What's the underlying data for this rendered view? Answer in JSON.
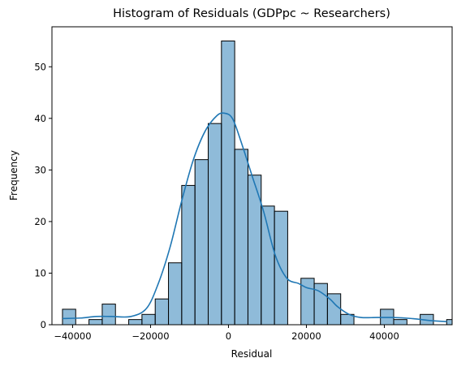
{
  "chart_data": {
    "type": "bar",
    "title": "Histogram of Residuals (GDPpc ~ Researchers)",
    "xlabel": "Residual",
    "ylabel": "Frequency",
    "xlim": [
      -45300,
      57400
    ],
    "ylim": [
      0,
      57.75
    ],
    "grid": false,
    "bar_color": "#1f77b4",
    "bar_opacity": 0.5,
    "edge_color": "#000000",
    "kde_color": "#1f77b4",
    "x_ticks": [
      -40000,
      -20000,
      0,
      20000,
      40000
    ],
    "x_tick_labels": [
      "−40000",
      "−20000",
      "0",
      "20000",
      "40000"
    ],
    "y_ticks": [
      0,
      10,
      20,
      30,
      40,
      50
    ],
    "y_tick_labels": [
      "0",
      "10",
      "20",
      "30",
      "40",
      "50"
    ],
    "bins": [
      {
        "x0": -42600,
        "x1": -39200,
        "count": 3
      },
      {
        "x0": -39200,
        "x1": -35800,
        "count": 0
      },
      {
        "x0": -35800,
        "x1": -32400,
        "count": 1
      },
      {
        "x0": -32400,
        "x1": -29000,
        "count": 4
      },
      {
        "x0": -29000,
        "x1": -25600,
        "count": 0
      },
      {
        "x0": -25600,
        "x1": -22200,
        "count": 1
      },
      {
        "x0": -22200,
        "x1": -18800,
        "count": 2
      },
      {
        "x0": -18800,
        "x1": -15400,
        "count": 5
      },
      {
        "x0": -15400,
        "x1": -12000,
        "count": 12
      },
      {
        "x0": -12000,
        "x1": -8600,
        "count": 27
      },
      {
        "x0": -8600,
        "x1": -5200,
        "count": 32
      },
      {
        "x0": -5200,
        "x1": -1800,
        "count": 39
      },
      {
        "x0": -1800,
        "x1": 1600,
        "count": 55
      },
      {
        "x0": 1600,
        "x1": 5000,
        "count": 34
      },
      {
        "x0": 5000,
        "x1": 8400,
        "count": 29
      },
      {
        "x0": 8400,
        "x1": 11800,
        "count": 23
      },
      {
        "x0": 11800,
        "x1": 15200,
        "count": 22
      },
      {
        "x0": 15200,
        "x1": 18600,
        "count": 0
      },
      {
        "x0": 18600,
        "x1": 22000,
        "count": 9
      },
      {
        "x0": 22000,
        "x1": 25400,
        "count": 8
      },
      {
        "x0": 25400,
        "x1": 28800,
        "count": 6
      },
      {
        "x0": 28800,
        "x1": 32200,
        "count": 2
      },
      {
        "x0": 32200,
        "x1": 35600,
        "count": 0
      },
      {
        "x0": 35600,
        "x1": 39000,
        "count": 0
      },
      {
        "x0": 39000,
        "x1": 42400,
        "count": 3
      },
      {
        "x0": 42400,
        "x1": 45800,
        "count": 1
      },
      {
        "x0": 45800,
        "x1": 49200,
        "count": 0
      },
      {
        "x0": 49200,
        "x1": 52600,
        "count": 2
      },
      {
        "x0": 52600,
        "x1": 56000,
        "count": 0
      },
      {
        "x0": 56000,
        "x1": 57400,
        "count": 1
      }
    ],
    "kde": [
      [
        -42600,
        1.2
      ],
      [
        -38000,
        1.3
      ],
      [
        -34000,
        1.6
      ],
      [
        -30000,
        1.6
      ],
      [
        -25000,
        1.6
      ],
      [
        -21000,
        3.2
      ],
      [
        -18000,
        8.0
      ],
      [
        -15000,
        15.0
      ],
      [
        -12000,
        24.0
      ],
      [
        -9000,
        32.0
      ],
      [
        -6000,
        37.5
      ],
      [
        -3000,
        40.5
      ],
      [
        -1000,
        41.0
      ],
      [
        1000,
        40.0
      ],
      [
        3000,
        36.0
      ],
      [
        6000,
        29.0
      ],
      [
        9000,
        22.0
      ],
      [
        12000,
        13.5
      ],
      [
        15000,
        9.0
      ],
      [
        18000,
        8.0
      ],
      [
        20000,
        7.2
      ],
      [
        23000,
        6.6
      ],
      [
        26000,
        5.0
      ],
      [
        28000,
        3.5
      ],
      [
        31000,
        2.0
      ],
      [
        34000,
        1.4
      ],
      [
        38000,
        1.4
      ],
      [
        42000,
        1.4
      ],
      [
        47000,
        1.2
      ],
      [
        52000,
        0.8
      ],
      [
        56000,
        0.6
      ]
    ]
  }
}
